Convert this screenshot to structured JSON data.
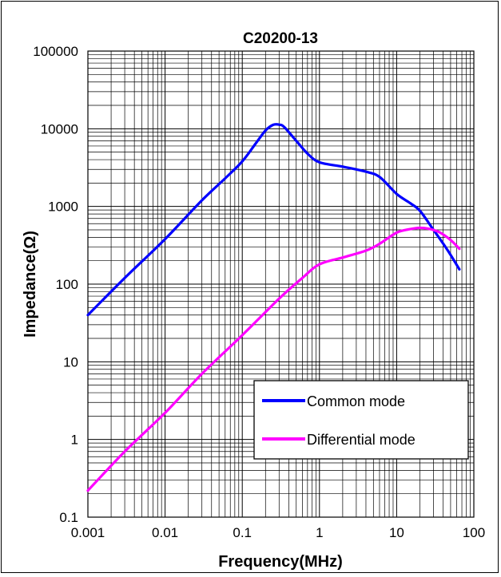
{
  "chart_data": {
    "type": "line",
    "title": "C20200-13",
    "xlabel": "Frequency(MHz)",
    "ylabel": "Impedance(Ω)",
    "xscale": "log",
    "yscale": "log",
    "xlim": [
      0.001,
      100
    ],
    "ylim": [
      0.1,
      100000
    ],
    "x_tick_labels": [
      "0.001",
      "0.01",
      "0.1",
      "1",
      "10",
      "100"
    ],
    "y_tick_labels": [
      "0.1",
      "1",
      "10",
      "100",
      "1000",
      "10000",
      "100000"
    ],
    "grid": true,
    "legend_position": "bottom-right",
    "series": [
      {
        "name": "Common mode",
        "color": "#0000ff",
        "points": [
          [
            0.001,
            40
          ],
          [
            0.003,
            120
          ],
          [
            0.01,
            380
          ],
          [
            0.03,
            1200
          ],
          [
            0.06,
            2300
          ],
          [
            0.1,
            3800
          ],
          [
            0.15,
            6500
          ],
          [
            0.2,
            9500
          ],
          [
            0.25,
            11200
          ],
          [
            0.3,
            11300
          ],
          [
            0.35,
            10500
          ],
          [
            0.5,
            7000
          ],
          [
            0.7,
            4800
          ],
          [
            1,
            3700
          ],
          [
            2,
            3250
          ],
          [
            4,
            2800
          ],
          [
            6,
            2400
          ],
          [
            10,
            1450
          ],
          [
            15,
            1100
          ],
          [
            20,
            880
          ],
          [
            30,
            500
          ],
          [
            45,
            280
          ],
          [
            65,
            155
          ]
        ]
      },
      {
        "name": "Differential mode",
        "color": "#ff00ff",
        "points": [
          [
            0.001,
            0.22
          ],
          [
            0.003,
            0.7
          ],
          [
            0.01,
            2.2
          ],
          [
            0.03,
            7
          ],
          [
            0.1,
            22
          ],
          [
            0.3,
            65
          ],
          [
            0.6,
            120
          ],
          [
            1,
            180
          ],
          [
            2,
            220
          ],
          [
            4,
            270
          ],
          [
            6,
            330
          ],
          [
            10,
            460
          ],
          [
            15,
            510
          ],
          [
            20,
            530
          ],
          [
            25,
            520
          ],
          [
            35,
            470
          ],
          [
            50,
            370
          ],
          [
            65,
            285
          ]
        ]
      }
    ]
  }
}
